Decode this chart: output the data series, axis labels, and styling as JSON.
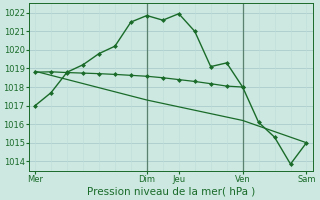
{
  "xlabel": "Pression niveau de la mer( hPa )",
  "bg_color": "#cce8e0",
  "grid_color": "#aacccc",
  "grid_color_minor": "#c0dcd8",
  "line_color": "#1a6b2a",
  "vline_color": "#5a8070",
  "x_ticks_labels": [
    "Mer",
    "",
    "Dim",
    "Jeu",
    "",
    "Ven",
    "",
    "Sam"
  ],
  "x_ticks_pos": [
    0,
    1.75,
    3.5,
    4.5,
    5.5,
    6.5,
    7.5,
    8.5
  ],
  "ylim": [
    1013.5,
    1022.5
  ],
  "yticks": [
    1014,
    1015,
    1016,
    1017,
    1018,
    1019,
    1020,
    1021,
    1022
  ],
  "line1_x": [
    0,
    0.5,
    1.0,
    1.5,
    2.0,
    2.5,
    3.0,
    3.5,
    4.0,
    4.5,
    5.0,
    5.5,
    6.0,
    6.5,
    7.0,
    7.5,
    8.0,
    8.5
  ],
  "line1_y": [
    1017.0,
    1017.7,
    1018.8,
    1019.2,
    1019.8,
    1020.2,
    1021.5,
    1021.85,
    1021.6,
    1021.95,
    1021.0,
    1019.1,
    1019.3,
    1018.0,
    1016.1,
    1015.3,
    1013.85,
    1015.0
  ],
  "line2_x": [
    0,
    0.5,
    1.0,
    1.5,
    2.0,
    2.5,
    3.0,
    3.5,
    4.0,
    4.5,
    5.0,
    5.5,
    6.0,
    6.5
  ],
  "line2_y": [
    1018.8,
    1018.82,
    1018.78,
    1018.75,
    1018.72,
    1018.68,
    1018.63,
    1018.58,
    1018.5,
    1018.4,
    1018.3,
    1018.18,
    1018.05,
    1018.0
  ],
  "line3_x": [
    0,
    3.5,
    6.5,
    8.5
  ],
  "line3_y": [
    1018.85,
    1017.3,
    1016.2,
    1015.0
  ],
  "vline_x": [
    3.5,
    6.5
  ],
  "marker": "D",
  "markersize": 2.5,
  "linewidth": 1.0,
  "fontsize_tick": 6,
  "fontsize_xlabel": 7.5
}
